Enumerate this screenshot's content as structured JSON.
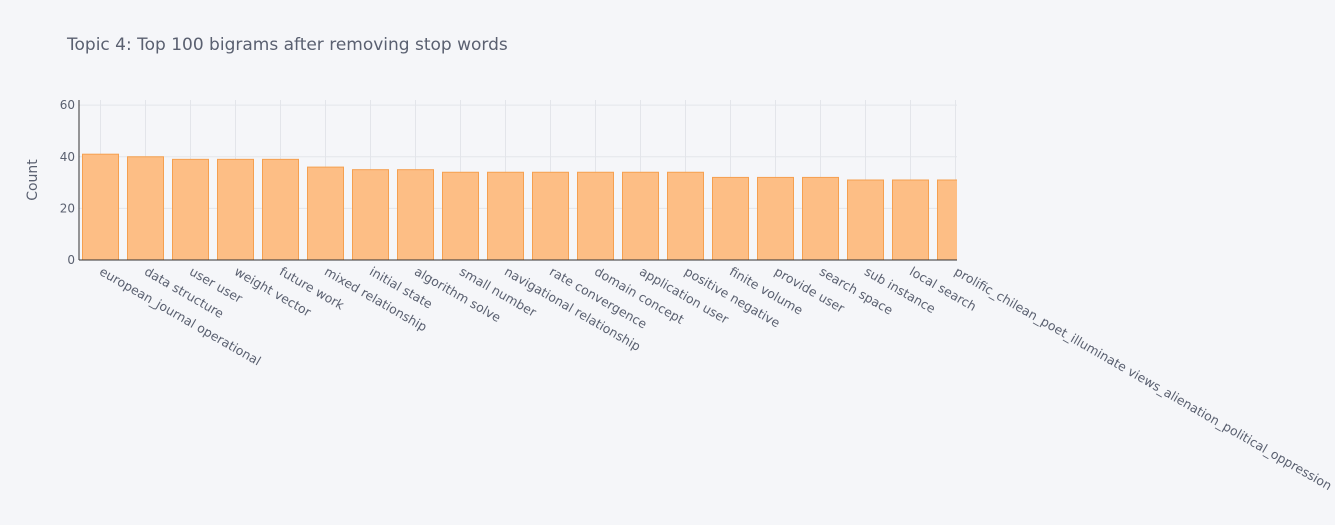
{
  "chart_data": {
    "type": "bar",
    "title": "Topic 4: Top 100 bigrams after removing stop words",
    "xlabel": "",
    "ylabel": "Count",
    "ylim": [
      0,
      62
    ],
    "yticks": [
      0,
      20,
      40,
      60
    ],
    "grid": true,
    "categories": [
      "european_journal operational",
      "data structure",
      "user user",
      "weight vector",
      "future work",
      "mixed relationship",
      "initial state",
      "algorithm solve",
      "small number",
      "navigational relationship",
      "rate convergence",
      "domain concept",
      "application user",
      "positive negative",
      "finite volume",
      "provide user",
      "search space",
      "sub instance",
      "local search",
      "prolific_chilean_poet_illuminate views_alienation_political_oppression"
    ],
    "values": [
      41,
      40,
      39,
      39,
      39,
      36,
      35,
      35,
      34,
      34,
      34,
      34,
      34,
      34,
      32,
      32,
      32,
      31,
      31,
      31
    ],
    "colors": {
      "bar_fill": "#fdbe85",
      "bar_stroke": "#f5a050",
      "grid": "#e3e5ea",
      "axis": "#333333",
      "text": "#5a6070",
      "background": "#f5f6f9"
    }
  }
}
